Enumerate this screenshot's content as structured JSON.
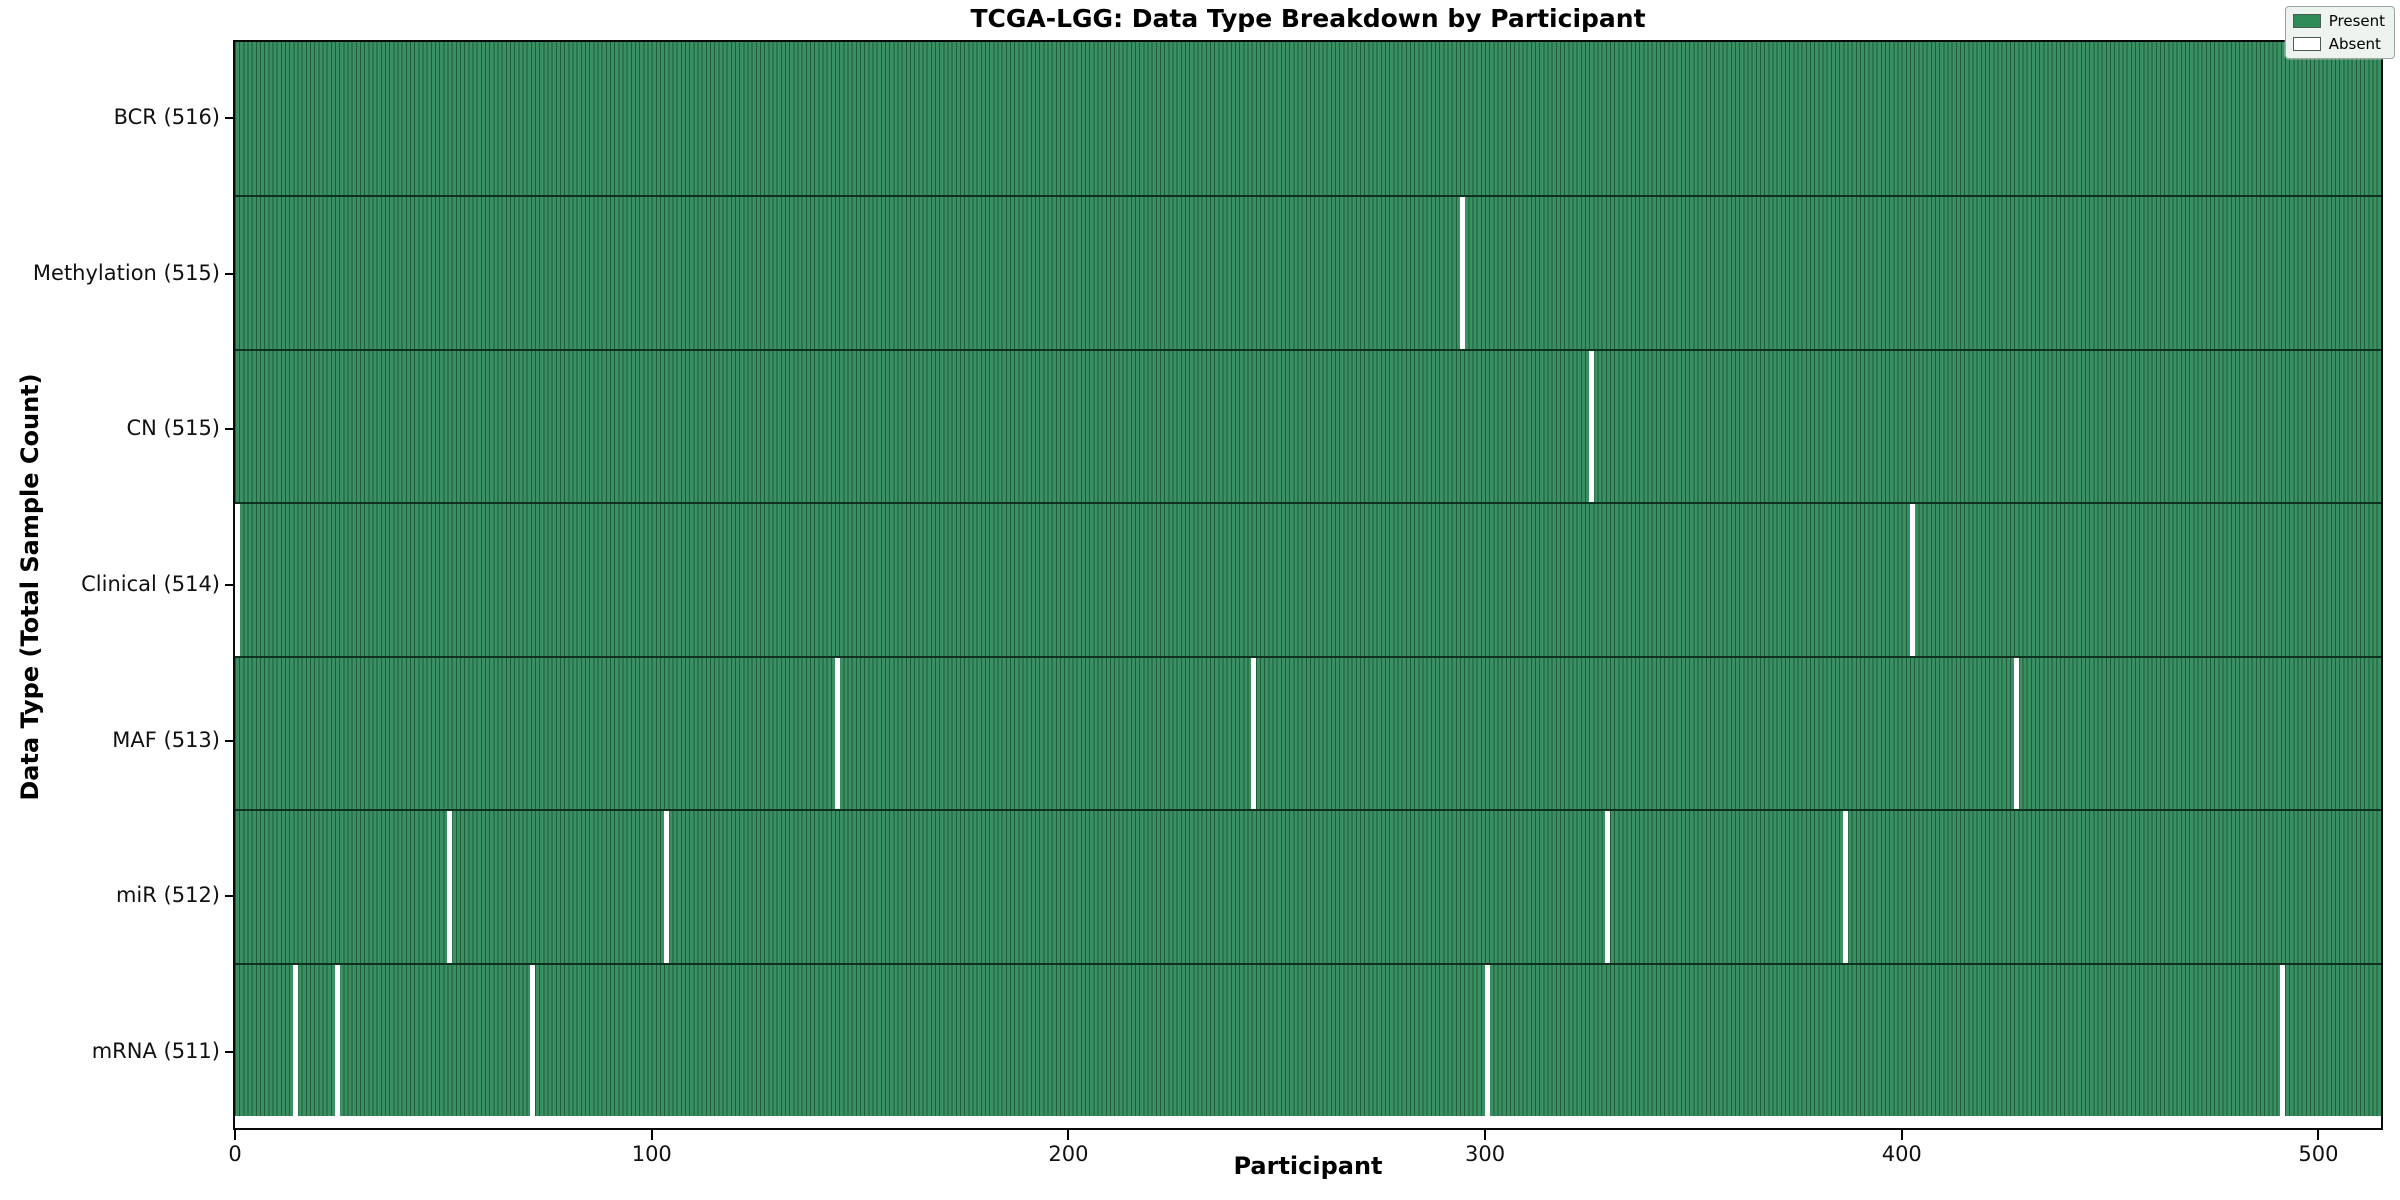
{
  "title": "TCGA-LGG: Data Type Breakdown by Participant",
  "legend": {
    "present_label": "Present",
    "absent_label": "Absent"
  },
  "chart_data": {
    "type": "heatmap",
    "title": "TCGA-LGG: Data Type Breakdown by Participant",
    "xlabel": "Participant",
    "ylabel": "Data Type (Total Sample Count)",
    "x_ticks": [
      0,
      100,
      200,
      300,
      400,
      500
    ],
    "xlim": [
      -0.5,
      515.5
    ],
    "n_participants": 516,
    "grid": false,
    "legend_position": "upper right",
    "legend_entries": [
      {
        "label": "Present",
        "color": "#2e8b57"
      },
      {
        "label": "Absent",
        "color": "#ffffff"
      }
    ],
    "rows": [
      {
        "label": "BCR",
        "total": 516,
        "absent_participants": []
      },
      {
        "label": "Methylation",
        "total": 515,
        "absent_participants": [
          294
        ]
      },
      {
        "label": "CN",
        "total": 515,
        "absent_participants": [
          325
        ]
      },
      {
        "label": "Clinical",
        "total": 514,
        "absent_participants": [
          0,
          402
        ]
      },
      {
        "label": "MAF",
        "total": 513,
        "absent_participants": [
          144,
          244,
          427
        ]
      },
      {
        "label": "miR",
        "total": 512,
        "absent_participants": [
          51,
          103,
          329,
          386
        ]
      },
      {
        "label": "mRNA",
        "total": 511,
        "absent_participants": [
          14,
          24,
          71,
          300,
          491
        ]
      }
    ],
    "colors": {
      "present": "#2e8b57",
      "present_fill": "#3a9063",
      "cell_edge": "#1e5c3a",
      "absent": "#ffffff",
      "row_separator": "#10301f"
    }
  }
}
